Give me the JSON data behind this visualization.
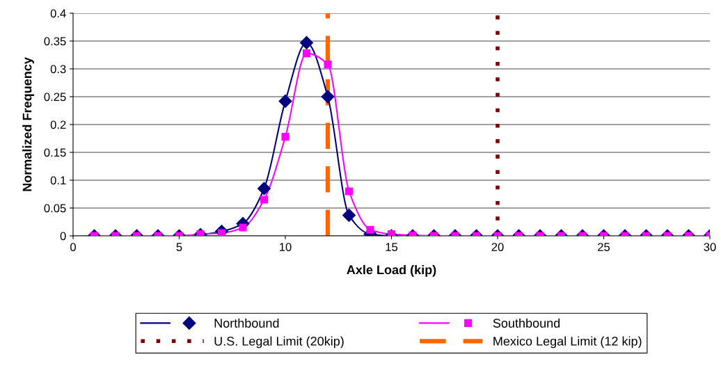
{
  "chart_data": {
    "type": "line",
    "xlabel": "Axle Load (kip)",
    "ylabel": "Normalized Frequency",
    "x": [
      1,
      2,
      3,
      4,
      5,
      6,
      7,
      8,
      9,
      10,
      11,
      12,
      13,
      14,
      15,
      16,
      17,
      18,
      19,
      20,
      21,
      22,
      23,
      24,
      25,
      26,
      27,
      28,
      29,
      30
    ],
    "series": [
      {
        "name": "Northbound",
        "color": "#000080",
        "marker": "diamond",
        "values": [
          0,
          0,
          0,
          0,
          0,
          0.002,
          0.008,
          0.022,
          0.085,
          0.242,
          0.347,
          0.25,
          0.037,
          0.003,
          0,
          0,
          0,
          0,
          0,
          0,
          0,
          0,
          0,
          0,
          0,
          0,
          0,
          0,
          0,
          0
        ]
      },
      {
        "name": "Southbound",
        "color": "#ff00ff",
        "marker": "square",
        "values": [
          0,
          0,
          0,
          0,
          0,
          0.003,
          0.005,
          0.015,
          0.065,
          0.178,
          0.328,
          0.308,
          0.08,
          0.011,
          0.003,
          0.001,
          0,
          0,
          0,
          0,
          0,
          0,
          0,
          0,
          0,
          0,
          0,
          0,
          0,
          0
        ]
      }
    ],
    "ref_lines": [
      {
        "axis": "x",
        "value": 20,
        "label": "U.S. Legal Limit (20kip)",
        "color": "#800000",
        "line_style": "dotted"
      },
      {
        "axis": "x",
        "value": 12,
        "label": "Mexico Legal Limit (12 kip)",
        "color": "#ff6600",
        "line_style": "dashed"
      }
    ],
    "xlim": [
      0,
      30
    ],
    "xticks": [
      0,
      5,
      10,
      15,
      20,
      25,
      30
    ],
    "ylim": [
      0,
      0.4
    ],
    "yticks": [
      0,
      0.05,
      0.1,
      0.15,
      0.2,
      0.25,
      0.3,
      0.35,
      0.4
    ],
    "grid": "y",
    "legend": "bottom"
  }
}
